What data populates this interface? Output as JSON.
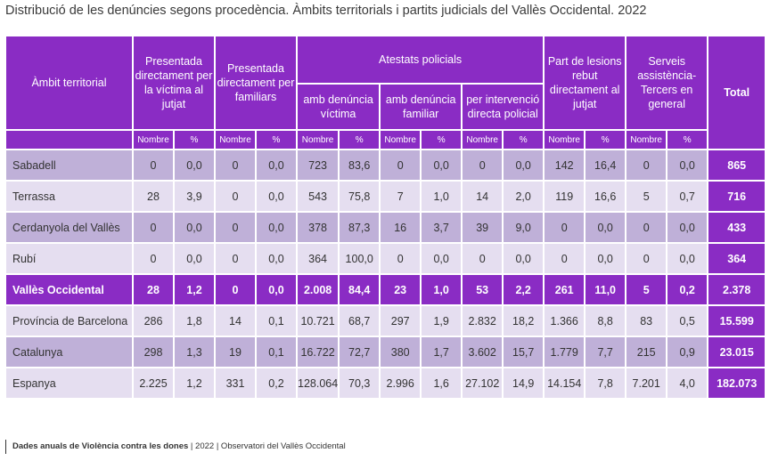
{
  "title": "Distribució de les denúncies segons procedència. Àmbits territorials i partits judicials del Vallès Occidental. 2022",
  "headers": {
    "ambit": "Àmbit territorial",
    "presentada_victima": "Presentada directament per la víctima al jutjat",
    "presentada_familiars": "Presentada directament per familiars",
    "atestats": "Atestats policials",
    "amb_victima": "amb denúncia víctima",
    "amb_familiar": "amb denúncia familiar",
    "intervencio": "per intervenció directa policial",
    "part_lesions": "Part de lesions rebut directament al jutjat",
    "serveis": "Serveis assistència-Tercers en general",
    "total": "Total",
    "nombre": "Nombre",
    "pct": "%"
  },
  "rows": [
    {
      "name": "Sabadell",
      "v": [
        "0",
        "0,0",
        "0",
        "0,0",
        "723",
        "83,6",
        "0",
        "0,0",
        "0",
        "0,0",
        "142",
        "16,4",
        "0",
        "0,0"
      ],
      "total": "865"
    },
    {
      "name": "Terrassa",
      "v": [
        "28",
        "3,9",
        "0",
        "0,0",
        "543",
        "75,8",
        "7",
        "1,0",
        "14",
        "2,0",
        "119",
        "16,6",
        "5",
        "0,7"
      ],
      "total": "716"
    },
    {
      "name": "Cerdanyola del Vallès",
      "v": [
        "0",
        "0,0",
        "0",
        "0,0",
        "378",
        "87,3",
        "16",
        "3,7",
        "39",
        "9,0",
        "0",
        "0,0",
        "0",
        "0,0"
      ],
      "total": "433"
    },
    {
      "name": "Rubí",
      "v": [
        "0",
        "0,0",
        "0",
        "0,0",
        "364",
        "100,0",
        "0",
        "0,0",
        "0",
        "0,0",
        "0",
        "0,0",
        "0",
        "0,0"
      ],
      "total": "364"
    },
    {
      "name": "Vallès Occidental",
      "v": [
        "28",
        "1,2",
        "0",
        "0,0",
        "2.008",
        "84,4",
        "23",
        "1,0",
        "53",
        "2,2",
        "261",
        "11,0",
        "5",
        "0,2"
      ],
      "total": "2.378"
    },
    {
      "name": "Província de Barcelona",
      "v": [
        "286",
        "1,8",
        "14",
        "0,1",
        "10.721",
        "68,7",
        "297",
        "1,9",
        "2.832",
        "18,2",
        "1.366",
        "8,8",
        "83",
        "0,5"
      ],
      "total": "15.599"
    },
    {
      "name": "Catalunya",
      "v": [
        "298",
        "1,3",
        "19",
        "0,1",
        "16.722",
        "72,7",
        "380",
        "1,7",
        "3.602",
        "15,7",
        "1.779",
        "7,7",
        "215",
        "0,9"
      ],
      "total": "23.015"
    },
    {
      "name": "Espanya",
      "v": [
        "2.225",
        "1,2",
        "331",
        "0,2",
        "128.064",
        "70,3",
        "2.996",
        "1,6",
        "27.102",
        "14,9",
        "14.154",
        "7,8",
        "7.201",
        "4,0"
      ],
      "total": "182.073"
    }
  ],
  "footer": {
    "bold": "Dades anuals de Violència contra les dones",
    "rest": " | 2022 | Observatori del Vallès Occidental"
  },
  "colors": {
    "purple": "#8a2cc4",
    "row_dark": "#bfb0d8",
    "row_light": "#e5def0"
  }
}
